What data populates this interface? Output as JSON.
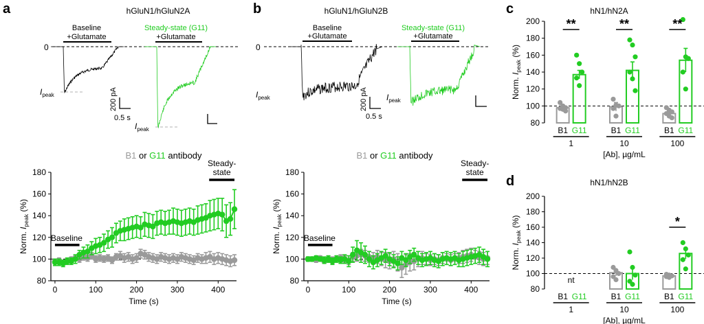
{
  "colors": {
    "b1": "#9a9a9a",
    "g11": "#22cc22",
    "axis": "#000000",
    "trace": "#000000"
  },
  "panel_a": {
    "letter": "a",
    "title": "hGluN1/hGluN2A",
    "trace_left_label_1": "Baseline",
    "trace_left_label_2": "+Glutamate",
    "trace_right_label_1": "Steady-state (G11)",
    "trace_right_label_2": "+Glutamate",
    "zero_label": "0",
    "ipeak_main": "I",
    "ipeak_sub": "peak",
    "scale_current": "200 pA",
    "scale_time": "0.5 s"
  },
  "panel_b": {
    "letter": "b",
    "title": "hGluN1/hGluN2B",
    "trace_left_label_1": "Baseline",
    "trace_left_label_2": "+Glutamate",
    "trace_right_label_1": "Steady-state (G11)",
    "trace_right_label_2": "+Glutamate",
    "zero_label": "0",
    "ipeak_main": "I",
    "ipeak_sub": "peak",
    "scale_current": "200 pA",
    "scale_time": "0.5 s"
  },
  "panel_c": {
    "letter": "c",
    "title": "hN1/hN2A"
  },
  "panel_d": {
    "letter": "d",
    "title": "hN1/hN2B"
  },
  "legend_text": {
    "b1": "B1",
    "or": " or ",
    "g11": "G11",
    "suffix": " antibody"
  },
  "chart_data": [
    {
      "id": "a-time",
      "type": "scatter",
      "xlabel": "Time (s)",
      "ylabel_main": "Norm. ",
      "ylabel_i": "I",
      "ylabel_sub": "peak",
      "ylabel_unit": " (%)",
      "xlim": [
        -10,
        445
      ],
      "ylim": [
        80,
        180
      ],
      "xticks": [
        0,
        100,
        200,
        300,
        400
      ],
      "yticks": [
        80,
        100,
        120,
        140,
        160,
        180
      ],
      "baseline_value": 100,
      "bars": [
        {
          "label": "Baseline",
          "x": [
            0,
            60
          ]
        },
        {
          "label_1": "Steady-",
          "label_2": "state",
          "x": [
            378,
            440
          ]
        }
      ],
      "series": [
        {
          "name": "B1",
          "x": [
            0,
            10,
            20,
            30,
            40,
            50,
            60,
            70,
            80,
            90,
            100,
            110,
            120,
            130,
            140,
            150,
            160,
            170,
            180,
            190,
            200,
            210,
            220,
            230,
            240,
            250,
            260,
            270,
            280,
            290,
            300,
            310,
            320,
            330,
            340,
            350,
            360,
            370,
            380,
            390,
            400,
            410,
            420,
            430,
            440
          ],
          "y": [
            98,
            99,
            97,
            98,
            100,
            101,
            100,
            102,
            101,
            103,
            100,
            101,
            100,
            101,
            99,
            102,
            103,
            101,
            102,
            100,
            101,
            105,
            104,
            102,
            101,
            100,
            102,
            101,
            100,
            101,
            100,
            102,
            101,
            100,
            99,
            101,
            100,
            101,
            102,
            100,
            101,
            100,
            99,
            98,
            99
          ],
          "err": [
            2,
            2,
            2,
            2,
            2,
            2,
            3,
            3,
            3,
            3,
            3,
            3,
            3,
            3,
            3,
            3,
            4,
            4,
            4,
            4,
            4,
            4,
            4,
            4,
            4,
            4,
            4,
            4,
            4,
            4,
            4,
            4,
            4,
            4,
            4,
            4,
            4,
            5,
            5,
            5,
            5,
            5,
            5,
            5,
            5
          ]
        },
        {
          "name": "G11",
          "x": [
            0,
            10,
            20,
            30,
            40,
            50,
            60,
            70,
            80,
            90,
            100,
            110,
            120,
            130,
            140,
            150,
            160,
            170,
            180,
            190,
            200,
            210,
            220,
            230,
            240,
            250,
            260,
            270,
            280,
            290,
            300,
            310,
            320,
            330,
            340,
            350,
            360,
            370,
            380,
            390,
            400,
            410,
            420,
            430,
            440
          ],
          "y": [
            97,
            97,
            96,
            98,
            98,
            100,
            104,
            106,
            107,
            110,
            112,
            113,
            115,
            118,
            120,
            124,
            126,
            127,
            128,
            129,
            130,
            129,
            132,
            131,
            130,
            133,
            134,
            133,
            134,
            135,
            134,
            133,
            134,
            135,
            134,
            136,
            137,
            138,
            140,
            141,
            142,
            141,
            135,
            137,
            146
          ],
          "err": [
            3,
            3,
            3,
            3,
            3,
            4,
            4,
            5,
            6,
            6,
            7,
            7,
            8,
            8,
            9,
            9,
            9,
            10,
            10,
            10,
            10,
            10,
            11,
            11,
            11,
            11,
            11,
            11,
            11,
            12,
            12,
            12,
            12,
            12,
            12,
            13,
            13,
            13,
            14,
            14,
            14,
            15,
            15,
            15,
            18
          ]
        }
      ]
    },
    {
      "id": "b-time",
      "type": "scatter",
      "xlabel": "Time (s)",
      "ylabel_main": "Norm. ",
      "ylabel_i": "I",
      "ylabel_sub": "peak",
      "ylabel_unit": " (%)",
      "xlim": [
        -10,
        445
      ],
      "ylim": [
        80,
        180
      ],
      "xticks": [
        0,
        100,
        200,
        300,
        400
      ],
      "yticks": [
        80,
        100,
        120,
        140,
        160,
        180
      ],
      "baseline_value": 100,
      "bars": [
        {
          "label": "Baseline",
          "x": [
            0,
            60
          ]
        },
        {
          "label_1": "Steady-",
          "label_2": "state",
          "x": [
            378,
            440
          ]
        }
      ],
      "series": [
        {
          "name": "B1",
          "x": [
            0,
            10,
            20,
            30,
            40,
            50,
            60,
            70,
            80,
            90,
            100,
            110,
            120,
            130,
            140,
            150,
            160,
            170,
            180,
            190,
            200,
            210,
            220,
            230,
            240,
            250,
            260,
            270,
            280,
            290,
            300,
            310,
            320,
            330,
            340,
            350,
            360,
            370,
            380,
            390,
            400,
            410,
            420,
            430,
            440
          ],
          "y": [
            100,
            100,
            99,
            101,
            98,
            100,
            99,
            100,
            101,
            100,
            99,
            102,
            103,
            104,
            103,
            102,
            101,
            102,
            100,
            99,
            98,
            100,
            97,
            92,
            95,
            97,
            98,
            100,
            101,
            100,
            99,
            100,
            99,
            101,
            100,
            99,
            100,
            101,
            102,
            103,
            104,
            102,
            101,
            100,
            101
          ],
          "err": [
            2,
            2,
            2,
            2,
            2,
            3,
            3,
            3,
            3,
            3,
            4,
            4,
            5,
            5,
            5,
            5,
            5,
            6,
            6,
            7,
            7,
            7,
            8,
            9,
            9,
            8,
            8,
            7,
            6,
            5,
            5,
            5,
            5,
            5,
            5,
            5,
            5,
            5,
            6,
            6,
            6,
            6,
            6,
            6,
            6
          ]
        },
        {
          "name": "G11",
          "x": [
            0,
            10,
            20,
            30,
            40,
            50,
            60,
            70,
            80,
            90,
            100,
            110,
            120,
            130,
            140,
            150,
            160,
            170,
            180,
            190,
            200,
            210,
            220,
            230,
            240,
            250,
            260,
            270,
            280,
            290,
            300,
            310,
            320,
            330,
            340,
            350,
            360,
            370,
            380,
            390,
            400,
            410,
            420,
            430,
            440
          ],
          "y": [
            100,
            100,
            101,
            100,
            99,
            100,
            98,
            100,
            99,
            100,
            98,
            104,
            108,
            106,
            104,
            100,
            97,
            99,
            101,
            103,
            100,
            98,
            96,
            101,
            99,
            102,
            104,
            101,
            99,
            100,
            101,
            99,
            98,
            100,
            101,
            100,
            101,
            99,
            100,
            101,
            102,
            103,
            104,
            102,
            100
          ],
          "err": [
            2,
            2,
            2,
            2,
            3,
            3,
            3,
            3,
            3,
            4,
            5,
            7,
            9,
            9,
            8,
            7,
            6,
            6,
            6,
            6,
            6,
            6,
            6,
            6,
            6,
            6,
            6,
            6,
            6,
            6,
            6,
            6,
            6,
            6,
            6,
            6,
            6,
            6,
            7,
            7,
            7,
            7,
            7,
            7,
            7
          ]
        }
      ]
    },
    {
      "id": "c-bars",
      "type": "bar",
      "xlabel": "[Ab], µg/mL",
      "ylabel_main": "Norm. ",
      "ylabel_i": "I",
      "ylabel_sub": "peak",
      "ylabel_unit": " (%)",
      "ylim": [
        80,
        200
      ],
      "yticks": [
        80,
        100,
        120,
        140,
        160,
        180,
        200
      ],
      "baseline_value": 100,
      "groups": [
        "1",
        "10",
        "100"
      ],
      "bar_labels": [
        "B1",
        "G11"
      ],
      "series": [
        {
          "name": "B1",
          "values": [
            98,
            99,
            91
          ],
          "err": [
            3,
            5,
            3
          ],
          "points": [
            [
              104,
              100,
              98,
              97,
              96,
              94
            ],
            [
              108,
              101,
              100,
              97,
              88
            ],
            [
              98,
              95,
              93,
              91,
              88,
              86
            ]
          ]
        },
        {
          "name": "G11",
          "values": [
            137,
            142,
            154
          ],
          "err": [
            5,
            10,
            14
          ],
          "points": [
            [
              160,
              150,
              140,
              133,
              124
            ],
            [
              178,
              172,
              158,
              140,
              132,
              118
            ],
            [
              202,
              158,
              156,
              140,
              120
            ]
          ]
        }
      ],
      "significance": [
        "**",
        "**",
        "**"
      ]
    },
    {
      "id": "d-bars",
      "type": "bar",
      "xlabel": "[Ab], µg/mL",
      "ylabel_main": "Norm. ",
      "ylabel_i": "I",
      "ylabel_sub": "peak",
      "ylabel_unit": " (%)",
      "ylim": [
        80,
        200
      ],
      "yticks": [
        80,
        100,
        120,
        140,
        160,
        180,
        200
      ],
      "baseline_value": 100,
      "groups": [
        "1",
        "10",
        "100"
      ],
      "bar_labels": [
        "B1",
        "G11"
      ],
      "nt_label": "nt",
      "series": [
        {
          "name": "B1",
          "values": [
            null,
            101,
            97
          ],
          "err": [
            0,
            4,
            2
          ],
          "points": [
            [],
            [
              108,
              104,
              100,
              96,
              92
            ],
            [
              99,
              98,
              97,
              96,
              95
            ]
          ]
        },
        {
          "name": "G11",
          "values": [
            null,
            100,
            126
          ],
          "err": [
            0,
            8,
            7
          ],
          "points": [
            [],
            [
              128,
              108,
              98,
              90,
              86
            ],
            [
              140,
              132,
              124,
              118,
              106
            ]
          ]
        }
      ],
      "significance": [
        "",
        "",
        "*"
      ]
    }
  ]
}
